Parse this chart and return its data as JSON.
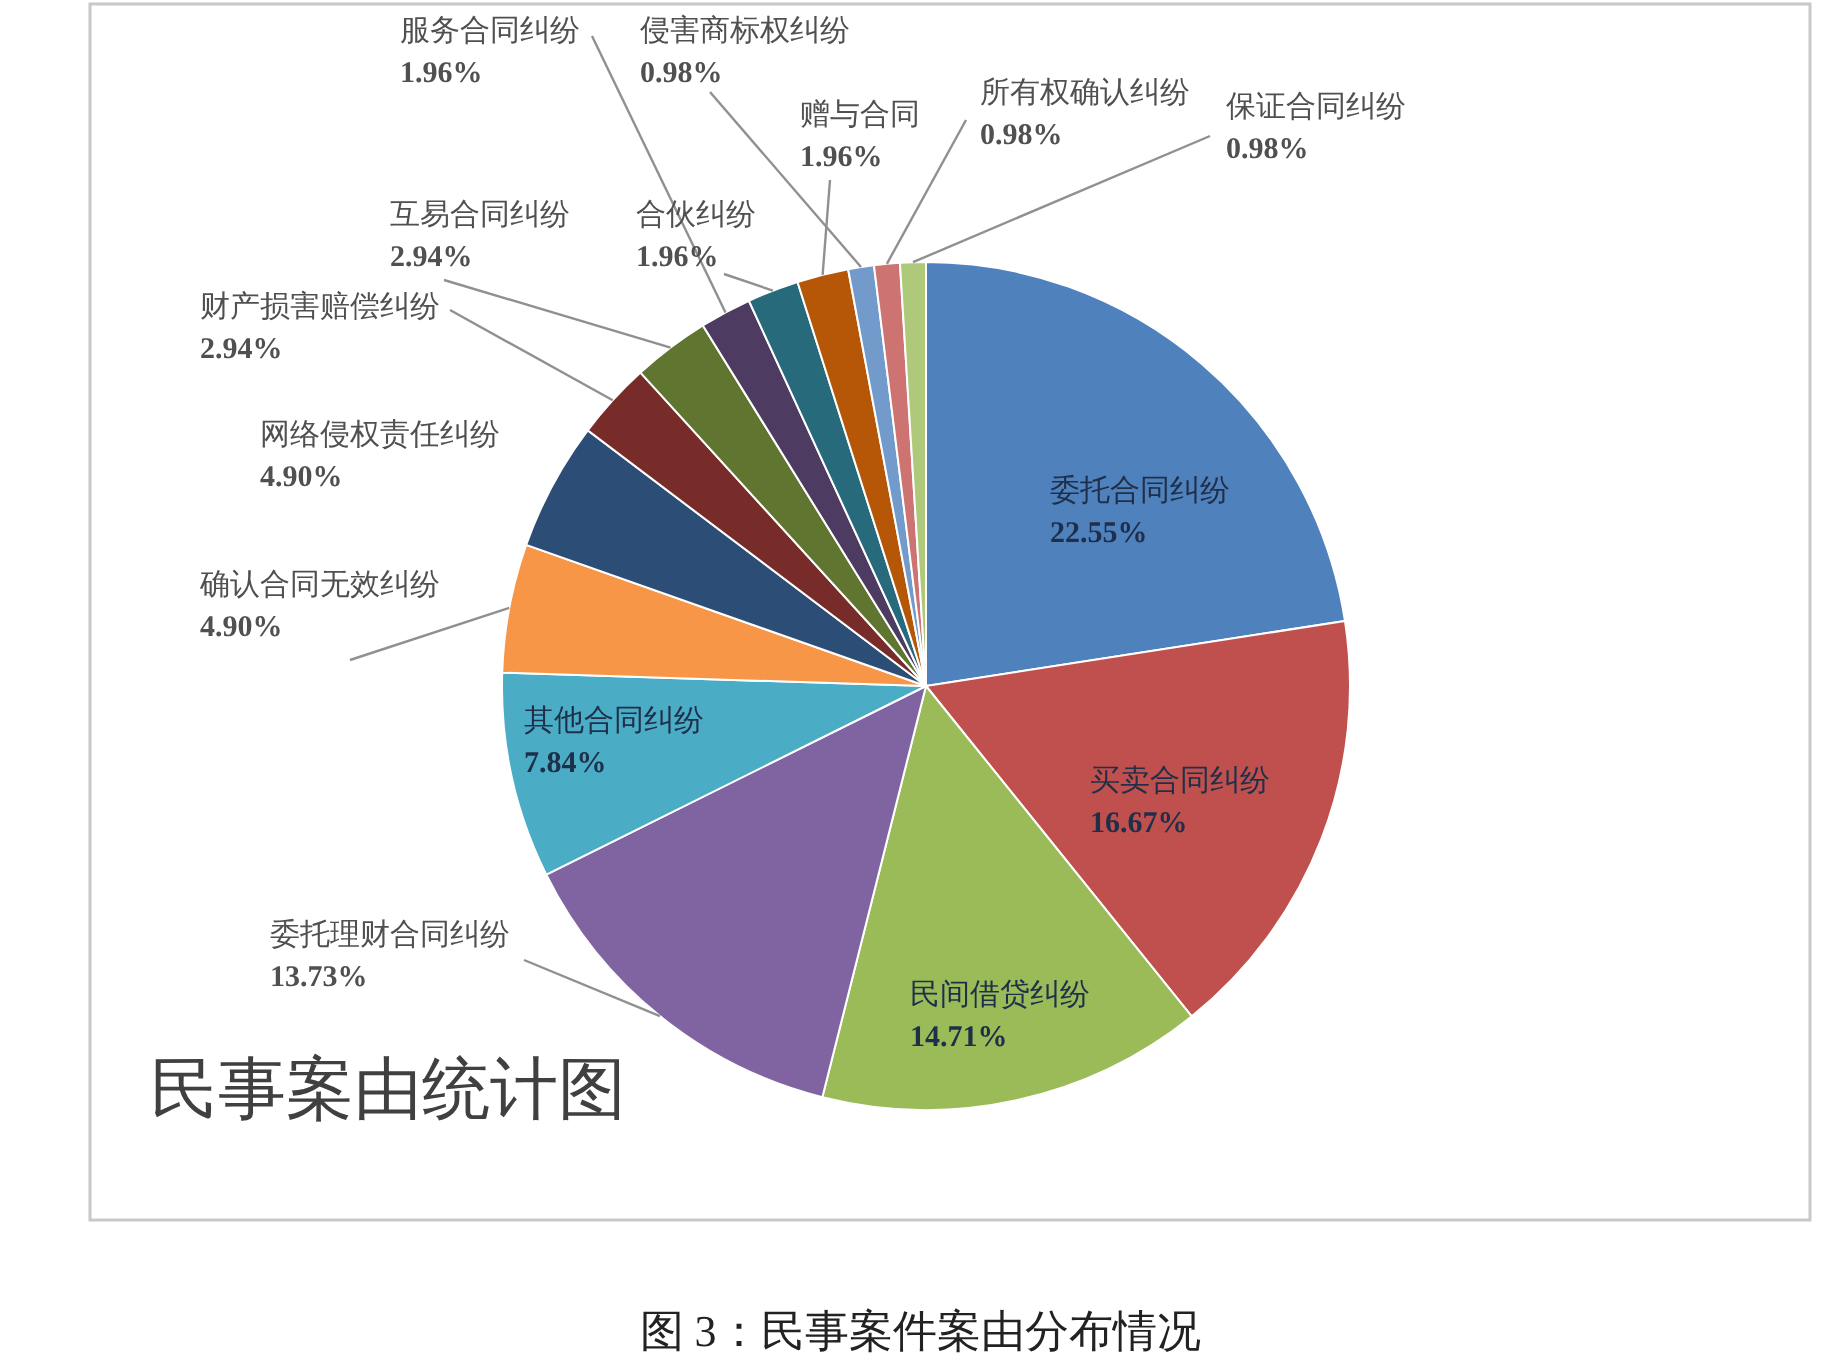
{
  "chart_data": {
    "type": "pie",
    "title": "民事案由统计图",
    "categories": [
      "委托合同纠纷",
      "买卖合同纠纷",
      "民间借贷纠纷",
      "委托理财合同纠纷",
      "其他合同纠纷",
      "确认合同无效纠纷",
      "网络侵权责任纠纷",
      "财产损害赔偿纠纷",
      "互易合同纠纷",
      "服务合同纠纷",
      "合伙纠纷",
      "赠与合同",
      "侵害商标权纠纷",
      "所有权确认纠纷",
      "保证合同纠纷"
    ],
    "values": [
      22.55,
      16.67,
      14.71,
      13.73,
      7.84,
      4.9,
      4.9,
      2.94,
      2.94,
      1.96,
      1.96,
      1.96,
      0.98,
      0.98,
      0.98
    ],
    "value_labels": [
      "22.55%",
      "16.67%",
      "14.71%",
      "13.73%",
      "7.84%",
      "4.90%",
      "4.90%",
      "2.94%",
      "2.94%",
      "1.96%",
      "1.96%",
      "1.96%",
      "0.98%",
      "0.98%",
      "0.98%"
    ],
    "colors": [
      "#4f81bd",
      "#c0504d",
      "#9bbb59",
      "#8064a2",
      "#4bacc6",
      "#f79646",
      "#2c4d75",
      "#772c2a",
      "#5f7530",
      "#4d3b62",
      "#276a7c",
      "#b65708",
      "#729aca",
      "#cd7371",
      "#afc97a"
    ],
    "annotations": [
      "图 3：民事案件案由分布情况"
    ]
  }
}
